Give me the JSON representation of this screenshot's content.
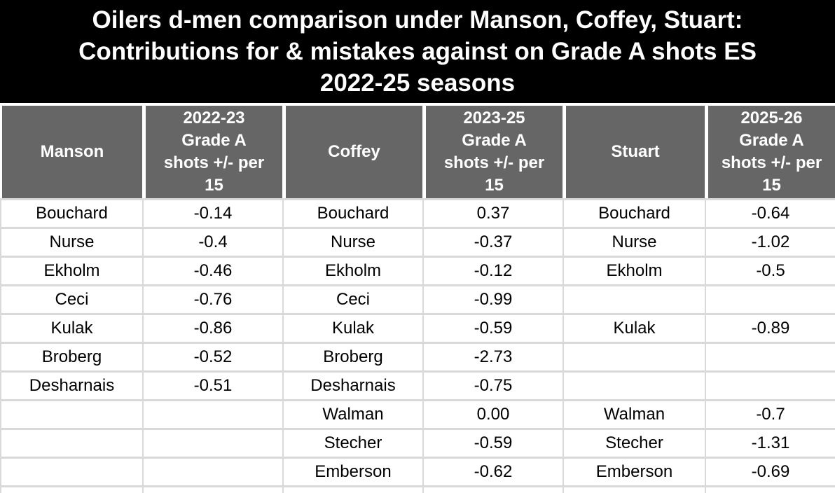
{
  "banner": {
    "title": "Oilers d-men comparison under Manson, Coffey, Stuart:\nContributions for & mistakes against on Grade A shots ES\n2022-25 seasons"
  },
  "colors": {
    "banner_bg": "#000000",
    "banner_text": "#ffffff",
    "header_bg": "#666666",
    "header_text": "#ffffff",
    "body_bg": "#ffffff",
    "body_text": "#000000",
    "grid_border": "#d9d9d9"
  },
  "chart_data": {
    "type": "table",
    "title": "Oilers d-men comparison under Manson, Coffey, Stuart: Contributions for & mistakes against on Grade A shots ES 2022-25 seasons",
    "columns": [
      "Manson",
      "2022-23\nGrade A\nshots +/- per\n15",
      "Coffey",
      "2023-25\nGrade A\nshots +/- per\n15",
      "Stuart",
      "2025-26\nGrade A\nshots +/- per\n15"
    ],
    "rows": [
      [
        "Bouchard",
        "-0.14",
        "Bouchard",
        "0.37",
        "Bouchard",
        "-0.64"
      ],
      [
        "Nurse",
        "-0.4",
        "Nurse",
        "-0.37",
        "Nurse",
        "-1.02"
      ],
      [
        "Ekholm",
        "-0.46",
        "Ekholm",
        "-0.12",
        "Ekholm",
        "-0.5"
      ],
      [
        "Ceci",
        "-0.76",
        "Ceci",
        "-0.99",
        "",
        ""
      ],
      [
        "Kulak",
        "-0.86",
        "Kulak",
        "-0.59",
        "Kulak",
        "-0.89"
      ],
      [
        "Broberg",
        "-0.52",
        "Broberg",
        "-2.73",
        "",
        ""
      ],
      [
        "Desharnais",
        "-0.51",
        "Desharnais",
        "-0.75",
        "",
        ""
      ],
      [
        "",
        "",
        "Walman",
        "0.00",
        "Walman",
        "-0.7"
      ],
      [
        "",
        "",
        "Stecher",
        "-0.59",
        "Stecher",
        "-1.31"
      ],
      [
        "",
        "",
        "Emberson",
        "-0.62",
        "Emberson",
        "-0.69"
      ],
      [
        "",
        "",
        "",
        "",
        "",
        ""
      ]
    ]
  }
}
